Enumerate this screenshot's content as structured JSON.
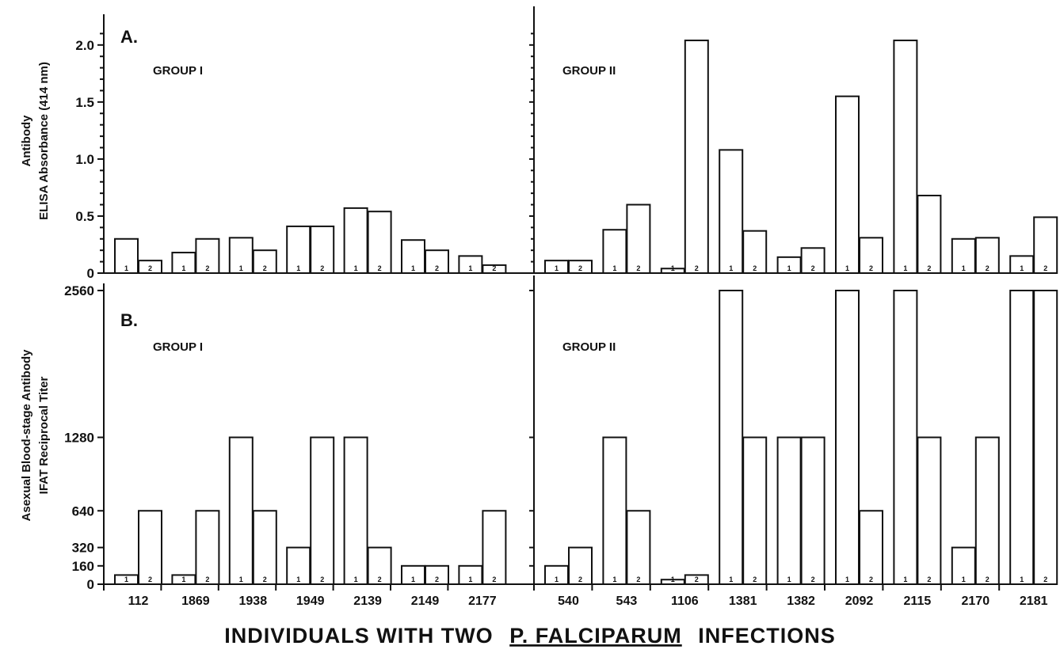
{
  "figure_title": {
    "prefix": "INDIVIDUALS WITH TWO",
    "species": "P. FALCIPARUM",
    "suffix": "INFECTIONS"
  },
  "chart_data": [
    {
      "type": "bar",
      "panel_label": "A.",
      "ylabel_lines": [
        "Antibody",
        "ELISA  Absorbance (414 nm)"
      ],
      "ylim": [
        0,
        2.2
      ],
      "yticks": [
        0,
        0.5,
        1.0,
        1.5,
        2.0
      ],
      "ytick_labels": [
        "0",
        "0.5",
        "1.0",
        "1.5",
        "2.0"
      ],
      "bar_labels": [
        "1",
        "2"
      ],
      "groups": [
        {
          "label": "GROUP I",
          "categories": [
            "112",
            "1869",
            "1938",
            "1949",
            "2139",
            "2149",
            "2177"
          ],
          "series": [
            {
              "values": [
                0.3,
                0.18,
                0.31,
                0.41,
                0.57,
                0.29,
                0.15
              ]
            },
            {
              "values": [
                0.11,
                0.3,
                0.2,
                0.41,
                0.54,
                0.2,
                0.07
              ]
            }
          ]
        },
        {
          "label": "GROUP II",
          "categories": [
            "540",
            "543",
            "1106",
            "1381",
            "1382",
            "2092",
            "2115",
            "2170",
            "2181"
          ],
          "series": [
            {
              "values": [
                0.11,
                0.38,
                0.04,
                1.08,
                0.14,
                1.55,
                2.04,
                0.3,
                0.15
              ]
            },
            {
              "values": [
                0.11,
                0.6,
                2.04,
                0.37,
                0.22,
                0.31,
                0.68,
                0.31,
                0.49
              ]
            }
          ]
        }
      ]
    },
    {
      "type": "bar",
      "panel_label": "B.",
      "ylabel_lines": [
        "Asexual Blood-stage  Antibody",
        "IFAT Reciprocal Titer"
      ],
      "ylim": [
        0,
        2560
      ],
      "yticks": [
        0,
        160,
        320,
        640,
        1280,
        2560
      ],
      "ytick_labels": [
        "0",
        "160",
        "320",
        "640",
        "1280",
        "2560"
      ],
      "bar_labels": [
        "1",
        "2"
      ],
      "xlabel": "",
      "groups": [
        {
          "label": "GROUP I",
          "categories": [
            "112",
            "1869",
            "1938",
            "1949",
            "2139",
            "2149",
            "2177"
          ],
          "series": [
            {
              "values": [
                80,
                80,
                1280,
                320,
                1280,
                160,
                160
              ]
            },
            {
              "values": [
                640,
                640,
                640,
                1280,
                320,
                160,
                640
              ]
            }
          ]
        },
        {
          "label": "GROUP II",
          "categories": [
            "540",
            "543",
            "1106",
            "1381",
            "1382",
            "2092",
            "2115",
            "2170",
            "2181"
          ],
          "series": [
            {
              "values": [
                160,
                1280,
                40,
                2560,
                1280,
                2560,
                2560,
                320,
                2560
              ]
            },
            {
              "values": [
                320,
                640,
                80,
                1280,
                1280,
                640,
                1280,
                1280,
                2560
              ]
            }
          ]
        }
      ]
    }
  ]
}
